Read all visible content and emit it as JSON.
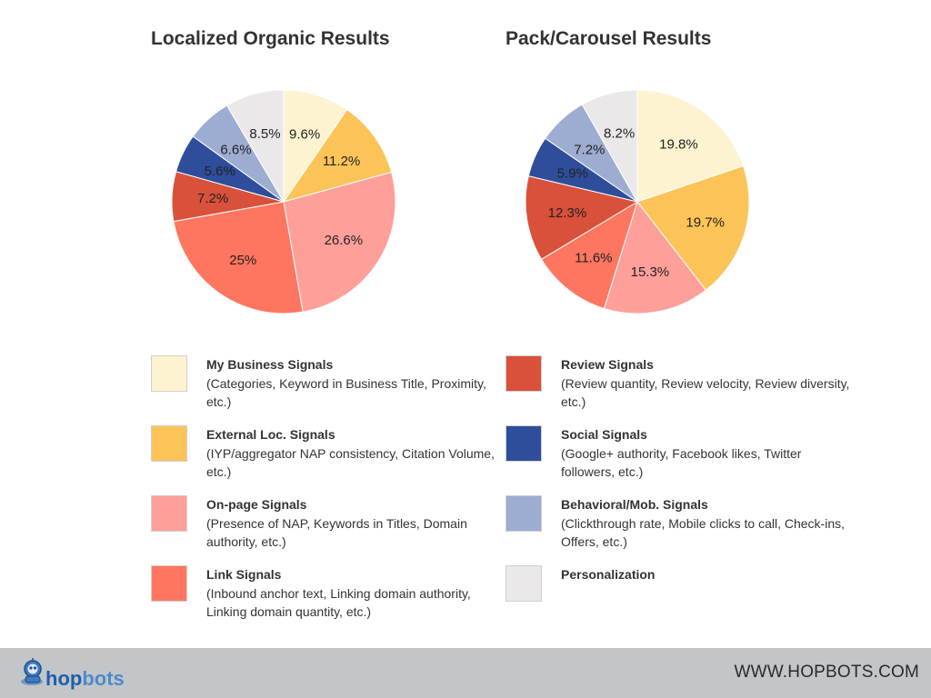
{
  "chart_data": [
    {
      "type": "pie",
      "title": "Localized Organic Results",
      "start_angle_deg": 0,
      "direction": "clockwise",
      "slices": [
        {
          "label": "My Business Signals",
          "value": 9.6,
          "display": "9.6%",
          "color": "#fef3d0"
        },
        {
          "label": "External Loc. Signals",
          "value": 11.2,
          "display": "11.2%",
          "color": "#fcc458"
        },
        {
          "label": "On-page Signals",
          "value": 26.6,
          "display": "26.6%",
          "color": "#ff9f9a"
        },
        {
          "label": "Link Signals",
          "value": 25,
          "display": "25%",
          "color": "#ff7660"
        },
        {
          "label": "Review Signals",
          "value": 7.2,
          "display": "7.2%",
          "color": "#d9513a"
        },
        {
          "label": "Social Signals",
          "value": 5.6,
          "display": "5.6%",
          "color": "#2e4e9b"
        },
        {
          "label": "Behavioral/Mob. Signals",
          "value": 6.6,
          "display": "6.6%",
          "color": "#9dadd1"
        },
        {
          "label": "Personalization",
          "value": 8.5,
          "display": "8.5%",
          "color": "#ebe8e9"
        }
      ]
    },
    {
      "type": "pie",
      "title": "Pack/Carousel Results",
      "start_angle_deg": 0,
      "direction": "clockwise",
      "slices": [
        {
          "label": "My Business Signals",
          "value": 19.8,
          "display": "19.8%",
          "color": "#fef3d0"
        },
        {
          "label": "External Loc. Signals",
          "value": 19.7,
          "display": "19.7%",
          "color": "#fcc458"
        },
        {
          "label": "On-page Signals",
          "value": 15.3,
          "display": "15.3%",
          "color": "#ff9f9a"
        },
        {
          "label": "Link Signals",
          "value": 11.6,
          "display": "11.6%",
          "color": "#ff7660"
        },
        {
          "label": "Review Signals",
          "value": 12.3,
          "display": "12.3%",
          "color": "#d9513a"
        },
        {
          "label": "Social Signals",
          "value": 5.9,
          "display": "5.9%",
          "color": "#2e4e9b"
        },
        {
          "label": "Behavioral/Mob. Signals",
          "value": 7.2,
          "display": "7.2%",
          "color": "#9dadd1"
        },
        {
          "label": "Personalization",
          "value": 8.2,
          "display": "8.2%",
          "color": "#ebe8e9"
        }
      ]
    }
  ],
  "legend": {
    "left": [
      {
        "name": "My Business Signals",
        "desc": "(Categories, Keyword in Business Title, Proximity, etc.)",
        "color": "#fef3d0"
      },
      {
        "name": "External Loc. Signals",
        "desc": "(IYP/aggregator NAP consistency, Citation Volume, etc.)",
        "color": "#fcc458"
      },
      {
        "name": "On-page Signals",
        "desc": "(Presence of NAP, Keywords in Titles, Domain authority, etc.)",
        "color": "#ff9f9a"
      },
      {
        "name": "Link Signals",
        "desc": "(Inbound anchor text, Linking domain authority, Linking domain quantity, etc.)",
        "color": "#ff7660"
      }
    ],
    "right": [
      {
        "name": "Review Signals",
        "desc": "(Review quantity, Review velocity, Review diversity, etc.)",
        "color": "#d9513a"
      },
      {
        "name": "Social Signals",
        "desc": "(Google+ authority, Facebook likes, Twitter followers, etc.)",
        "color": "#2e4e9b"
      },
      {
        "name": "Behavioral/Mob. Signals",
        "desc": "(Clickthrough rate, Mobile clicks to call, Check-ins, Offers, etc.)",
        "color": "#9dadd1"
      },
      {
        "name": "Personalization",
        "desc": "",
        "color": "#ebe8e9"
      }
    ]
  },
  "footer": {
    "logo_text_hop": "hop",
    "logo_text_bots": "bots",
    "logo_icon": "robot-mascot-icon",
    "website": "WWW.HOPBOTS.COM",
    "background": "#c3c6c8"
  }
}
